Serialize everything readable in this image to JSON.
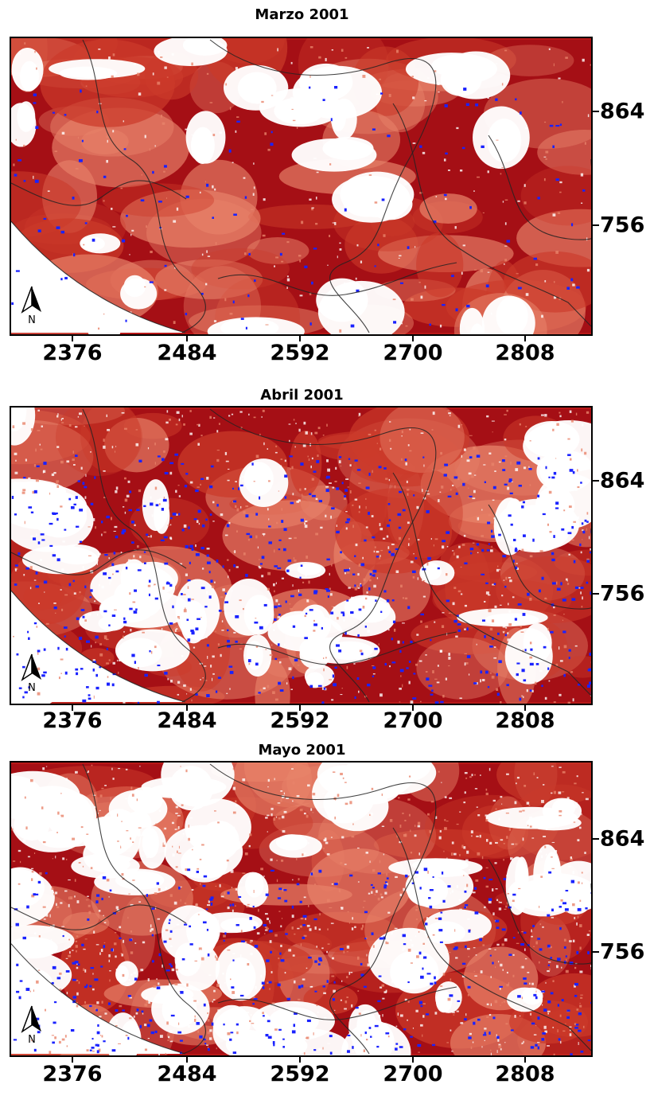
{
  "panels": [
    {
      "title": "Marzo 2001",
      "x_ticks": [
        "2376",
        "2484",
        "2592",
        "2700",
        "2808"
      ],
      "y_ticks": [
        "864",
        "756"
      ],
      "north_label": "N",
      "intensity": "high"
    },
    {
      "title": "Abril 2001",
      "x_ticks": [
        "2376",
        "2484",
        "2592",
        "2700",
        "2808"
      ],
      "y_ticks": [
        "864",
        "756"
      ],
      "north_label": "N",
      "intensity": "medium"
    },
    {
      "title": "Mayo 2001",
      "x_ticks": [
        "2376",
        "2484",
        "2592",
        "2700",
        "2808"
      ],
      "y_ticks": [
        "864",
        "756"
      ],
      "north_label": "N",
      "intensity": "low"
    }
  ],
  "colors": {
    "dark_red": "#a50f15",
    "mid_red": "#cb3a2a",
    "light_red": "#e8836a",
    "background": "#ffffff",
    "blue_points": "#1a22ff",
    "boundaries": "#222222"
  }
}
